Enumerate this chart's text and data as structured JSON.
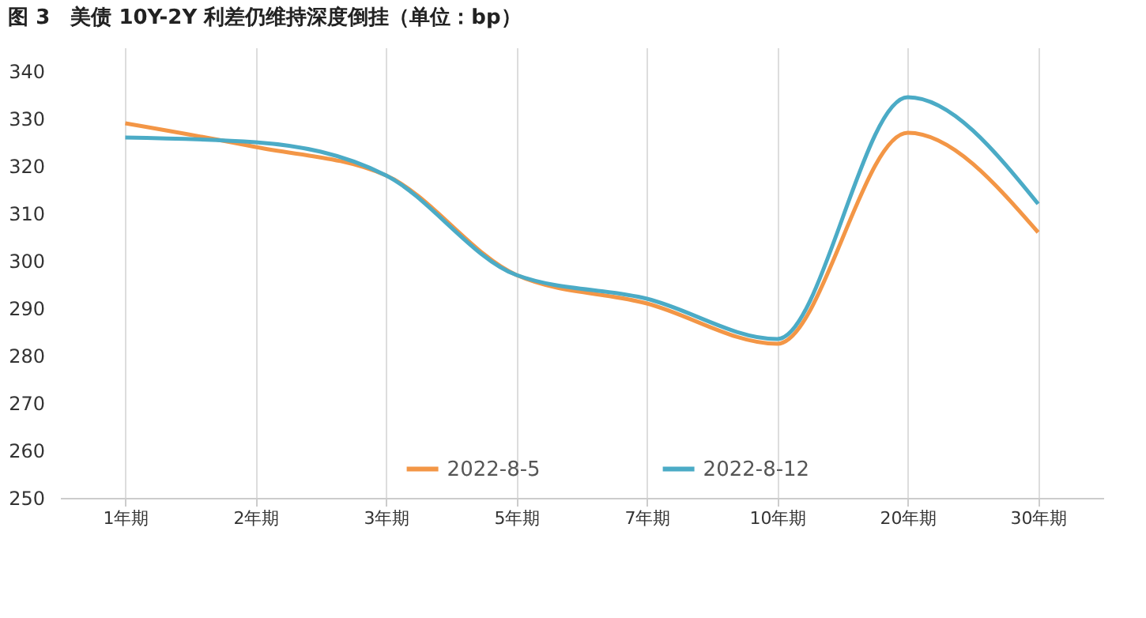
{
  "chart_data": {
    "type": "line",
    "title": "图 3　美债 10Y-2Y 利差仍维持深度倒挂（单位：bp）",
    "categories": [
      "1年期",
      "2年期",
      "3年期",
      "5年期",
      "7年期",
      "10年期",
      "20年期",
      "30年期"
    ],
    "series": [
      {
        "name": "2022-8-5",
        "color": "#f39646",
        "values": [
          329,
          324,
          318,
          297,
          291,
          282.5,
          327,
          306
        ]
      },
      {
        "name": "2022-8-12",
        "color": "#4babc6",
        "values": [
          326,
          325,
          318,
          297,
          292,
          283.5,
          334.5,
          312
        ]
      }
    ],
    "ylim": [
      250,
      345
    ],
    "yticks": [
      250,
      260,
      270,
      280,
      290,
      300,
      310,
      320,
      330,
      340
    ],
    "grid": "x",
    "legend": "bottom",
    "marker": "none",
    "line_style": "solid"
  }
}
